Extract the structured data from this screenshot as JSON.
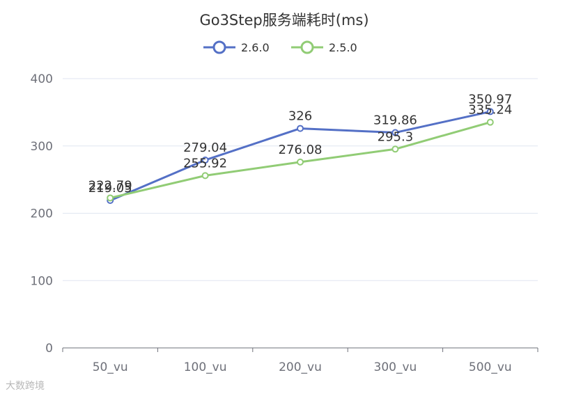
{
  "chart_data": {
    "type": "line",
    "title": "Go3Step服务端耗时(ms)",
    "categories": [
      "50_vu",
      "100_vu",
      "200_vu",
      "300_vu",
      "500_vu"
    ],
    "y_ticks": [
      "0",
      "100",
      "200",
      "300",
      "400"
    ],
    "ylim": [
      0,
      400
    ],
    "grid": true,
    "legend_position": "top-center",
    "series": [
      {
        "name": "2.6.0",
        "color": "#5470c6",
        "values": [
          219.05,
          279.04,
          326,
          319.86,
          350.97
        ],
        "labels": [
          "219.05",
          "279.04",
          "326",
          "319.86",
          "350.97"
        ]
      },
      {
        "name": "2.5.0",
        "color": "#91cc75",
        "values": [
          222.79,
          255.92,
          276.08,
          295.3,
          335.24
        ],
        "labels": [
          "222.79",
          "255.92",
          "276.08",
          "295.3",
          "335.24"
        ]
      }
    ]
  },
  "watermark": "大数跨境"
}
